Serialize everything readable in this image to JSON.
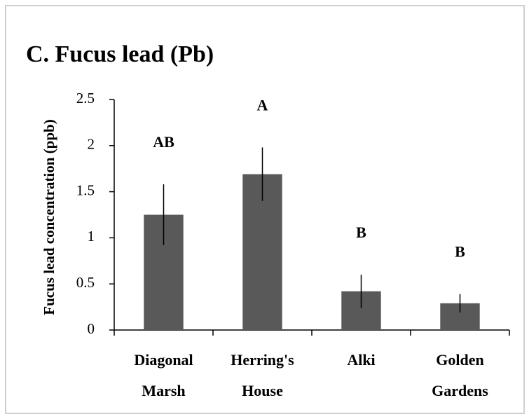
{
  "chart_data": {
    "type": "bar",
    "title": "C. Fucus lead (Pb)",
    "y_label": "Fucus lead concentration (ppb)",
    "categories": [
      [
        "Diagonal",
        "Marsh"
      ],
      [
        "Herring's",
        "House"
      ],
      [
        "Alki"
      ],
      [
        "Golden",
        "Gardens"
      ]
    ],
    "values": [
      1.25,
      1.69,
      0.42,
      0.29
    ],
    "errors": [
      0.33,
      0.29,
      0.18,
      0.1
    ],
    "group_labels": [
      "AB",
      "A",
      "B",
      "B"
    ],
    "color": "#595959",
    "ylim": [
      0,
      2.5
    ],
    "yticks": [
      0,
      0.5,
      1,
      1.5,
      2,
      2.5
    ],
    "grid": false
  }
}
